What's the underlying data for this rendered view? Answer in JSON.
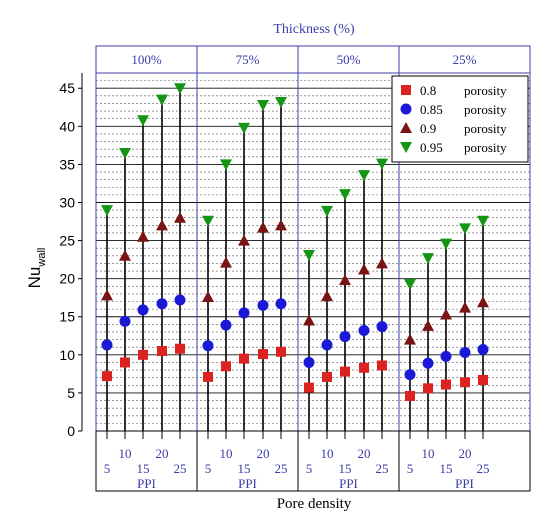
{
  "chart_data": {
    "type": "scatter",
    "title": "Thickness (%)",
    "ylabel_main": "Nu",
    "ylabel_sub": "wall",
    "xlabel": "Pore density",
    "ylim": [
      0,
      47
    ],
    "yticks": [
      0,
      5,
      10,
      15,
      20,
      25,
      30,
      35,
      40,
      45
    ],
    "groups": [
      {
        "label": "100%",
        "unit": "PPI"
      },
      {
        "label": "75%",
        "unit": "PPI"
      },
      {
        "label": "50%",
        "unit": "PPI"
      },
      {
        "label": "25%",
        "unit": "PPI"
      }
    ],
    "categories": [
      "5",
      "10",
      "15",
      "20",
      "25"
    ],
    "legend_position": "top-right",
    "grid": "horizontal-dashed",
    "series": [
      {
        "name": "0.8 porosity",
        "color": "#dd2222",
        "marker": "square",
        "values": [
          [
            7.2,
            9.0,
            10.0,
            10.5,
            10.8
          ],
          [
            7.1,
            8.5,
            9.5,
            10.1,
            10.4
          ],
          [
            5.7,
            7.1,
            7.8,
            8.3,
            8.6
          ],
          [
            4.6,
            5.6,
            6.1,
            6.4,
            6.7
          ]
        ]
      },
      {
        "name": "0.85 porosity",
        "color": "#1a1ad6",
        "marker": "circle",
        "values": [
          [
            11.3,
            14.4,
            15.9,
            16.7,
            17.2
          ],
          [
            11.2,
            13.9,
            15.5,
            16.5,
            16.7
          ],
          [
            9.0,
            11.3,
            12.4,
            13.2,
            13.7
          ],
          [
            7.4,
            8.9,
            9.8,
            10.3,
            10.7
          ]
        ]
      },
      {
        "name": "0.9 porosity",
        "color": "#7a1414",
        "marker": "triangle-up",
        "values": [
          [
            17.8,
            23.0,
            25.5,
            27.0,
            28.0
          ],
          [
            17.6,
            22.1,
            25.0,
            26.7,
            27.0
          ],
          [
            14.5,
            17.7,
            19.8,
            21.2,
            22.0
          ],
          [
            12.0,
            13.8,
            15.3,
            16.2,
            16.9
          ]
        ]
      },
      {
        "name": "0.95 porosity",
        "color": "#149614",
        "marker": "triangle-down",
        "values": [
          [
            29.0,
            36.5,
            40.8,
            43.5,
            45.0
          ],
          [
            27.6,
            35.0,
            39.8,
            42.8,
            43.2
          ],
          [
            23.1,
            28.9,
            31.1,
            33.6,
            35.1
          ],
          [
            19.3,
            22.7,
            24.6,
            26.6,
            27.6
          ]
        ]
      }
    ]
  }
}
